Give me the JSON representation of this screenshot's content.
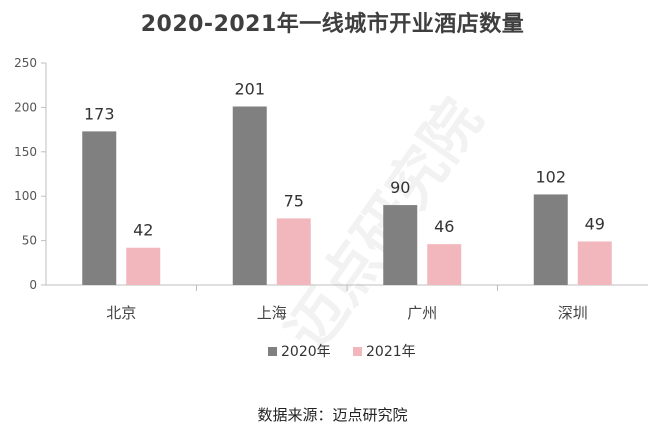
{
  "chart_data": {
    "type": "bar",
    "title": "2020-2021年一线城市开业酒店数量",
    "categories": [
      "北京",
      "上海",
      "广州",
      "深圳"
    ],
    "series": [
      {
        "name": "2020年",
        "values": [
          173,
          201,
          90,
          102
        ],
        "color": "#808080"
      },
      {
        "name": "2021年",
        "values": [
          42,
          75,
          46,
          49
        ],
        "color": "#f2b7bc"
      }
    ],
    "ylim": [
      0,
      250
    ],
    "yticks": [
      0,
      50,
      100,
      150,
      200,
      250
    ],
    "xlabel": "",
    "ylabel": "",
    "grid": false,
    "legend": "bottom"
  },
  "source": "数据来源：迈点研究院",
  "watermark": "迈点研究院"
}
